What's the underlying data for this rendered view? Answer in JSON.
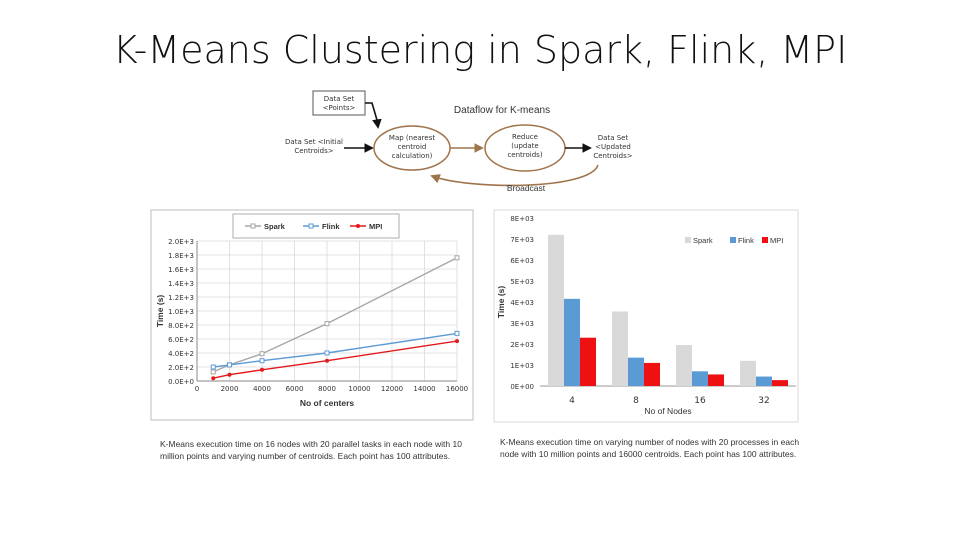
{
  "slide": {
    "title": "K-Means Clustering in Spark, Flink, MPI"
  },
  "diagram": {
    "title": "Dataflow for K-means",
    "data_set_points": [
      "Data Set",
      "<Points>"
    ],
    "initial_centroids": [
      "Data Set <Initial",
      "Centroids>"
    ],
    "map_node": [
      "Map (nearest",
      "centroid",
      "calculation)"
    ],
    "reduce_node": [
      "Reduce",
      "(update",
      "centroids)"
    ],
    "updated_centroids": [
      "Data Set",
      "<Updated",
      "Centroids>"
    ],
    "broadcast_label": "Broadcast"
  },
  "chart_data": [
    {
      "type": "line",
      "title": "",
      "xlabel": "No of centers",
      "ylabel": "Time (s)",
      "x": [
        1000,
        2000,
        4000,
        8000,
        16000
      ],
      "x_ticks": [
        "0",
        "2000",
        "4000",
        "6000",
        "8000",
        "10000",
        "12000",
        "14000",
        "16000"
      ],
      "y_ticks": [
        "0.0E+0",
        "2.0E+2",
        "4.0E+2",
        "6.0E+2",
        "8.0E+2",
        "1.0E+3",
        "1.2E+3",
        "1.4E+3",
        "1.6E+3",
        "1.8E+3",
        "2.0E+3"
      ],
      "xlim": [
        0,
        16000
      ],
      "ylim": [
        0,
        2000
      ],
      "series": [
        {
          "name": "Spark",
          "color": "#a6a6a6",
          "values": [
            130,
            230,
            390,
            820,
            1760
          ]
        },
        {
          "name": "Flink",
          "color": "#5b9bd5",
          "values": [
            200,
            230,
            290,
            400,
            680
          ]
        },
        {
          "name": "MPI",
          "color": "#e31a1c",
          "values": [
            40,
            90,
            160,
            290,
            570
          ]
        }
      ],
      "legend": "top"
    },
    {
      "type": "bar",
      "title": "",
      "xlabel": "No of Nodes",
      "ylabel": "Time (s)",
      "categories": [
        "4",
        "8",
        "16",
        "32"
      ],
      "y_ticks": [
        "0E+00",
        "1E+03",
        "2E+03",
        "3E+03",
        "4E+03",
        "5E+03",
        "6E+03",
        "7E+03",
        "8E+03"
      ],
      "ylim": [
        0,
        8000
      ],
      "series": [
        {
          "name": "Spark",
          "color": "#d9d9d9",
          "values": [
            7200,
            3550,
            1950,
            1200
          ]
        },
        {
          "name": "Flink",
          "color": "#5b9bd5",
          "values": [
            4150,
            1350,
            700,
            450
          ]
        },
        {
          "name": "MPI",
          "color": "#ee1111",
          "values": [
            2300,
            1100,
            550,
            280
          ]
        }
      ],
      "legend": "top-right"
    }
  ],
  "captions": {
    "left": "K-Means execution time on 16 nodes with 20 parallel tasks in each node with 10 million points and varying number of centroids. Each point has 100 attributes.",
    "right": "K-Means execution time on varying number of nodes with 20 processes in each node with 10 million points and 16000 centroids. Each point has 100 attributes."
  }
}
